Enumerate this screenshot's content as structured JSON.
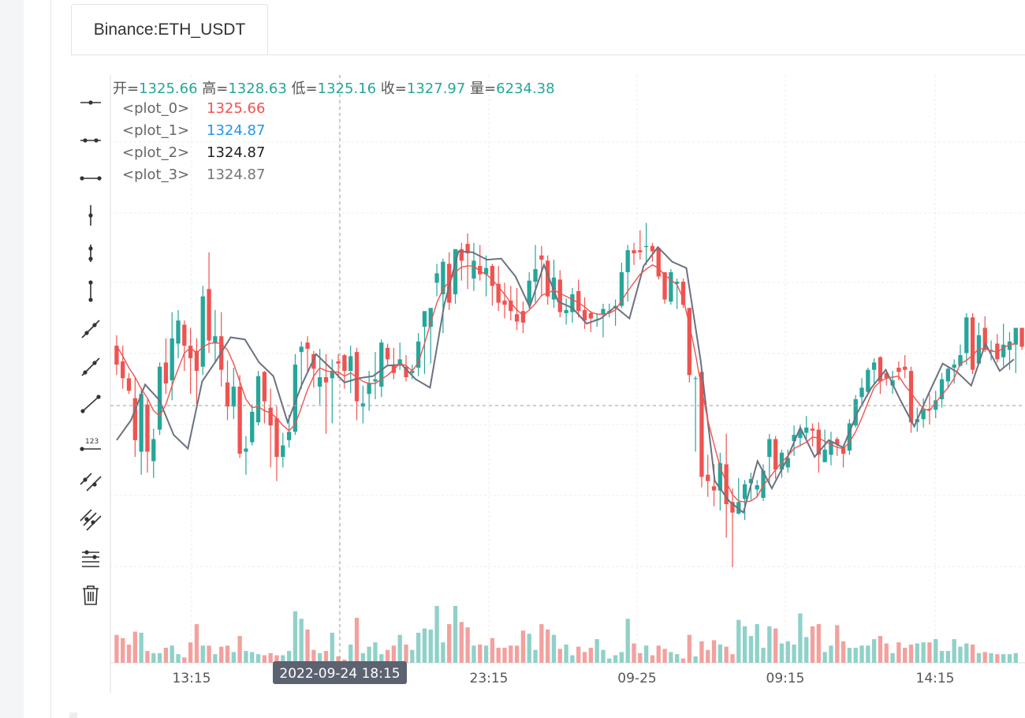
{
  "tab": {
    "label": "Binance:ETH_USDT"
  },
  "ohlcv_legend": {
    "open_label": "开=",
    "open": "1325.66",
    "high_label": "高=",
    "high": "1328.63",
    "low_label": "低=",
    "low": "1325.16",
    "close_label": "收=",
    "close": "1327.97",
    "vol_label": "量=",
    "vol": "6234.38"
  },
  "plots": [
    {
      "name": "<plot_0>",
      "value": "1325.66",
      "color": "#ef5350"
    },
    {
      "name": "<plot_1>",
      "value": "1324.87",
      "color": "#2196f3"
    },
    {
      "name": "<plot_2>",
      "value": "1324.87",
      "color": "#222222"
    },
    {
      "name": "<plot_3>",
      "value": "1324.87",
      "color": "#777777"
    }
  ],
  "toolbar": {
    "tools": [
      "horizontal-ray-icon",
      "horizontal-segment-icon",
      "horizontal-line-icon",
      "vertical-ray-icon",
      "vertical-segment-icon",
      "vertical-line-icon",
      "trend-line-icon",
      "trend-ray-icon",
      "trend-segment-icon",
      "price-label-icon",
      "parallel-channel-icon",
      "fibonacci-channel-icon",
      "price-range-icon",
      "delete-icon"
    ]
  },
  "colors": {
    "up": "#26a69a",
    "down": "#ef5350",
    "ma": "#ef5350",
    "line": "#6b7280",
    "grid": "#eeeeee"
  },
  "chart_data": {
    "type": "candlestick",
    "x_ticks": [
      "13:15",
      "23:15",
      "09-25",
      "09:15",
      "14:15"
    ],
    "crosshair_time": "2022-09-24 18:15",
    "ylim": [
      1300,
      1350
    ],
    "candles": [
      [
        1324.2,
        1325.2,
        1321.4,
        1322.4
      ],
      [
        1322.7,
        1324.2,
        1320.1,
        1321.1
      ],
      [
        1321.1,
        1321.6,
        1319.6,
        1319.9
      ],
      [
        1319.2,
        1321.2,
        1313.6,
        1315.2
      ],
      [
        1314.1,
        1320.2,
        1311.9,
        1319.6
      ],
      [
        1318.6,
        1319.1,
        1312.1,
        1314.1
      ],
      [
        1313.2,
        1316.3,
        1311.6,
        1315.3
      ],
      [
        1316.2,
        1322.6,
        1315.7,
        1322.2
      ],
      [
        1322.6,
        1324.9,
        1319.6,
        1320.6
      ],
      [
        1320.9,
        1327.4,
        1319.0,
        1324.9
      ],
      [
        1324.4,
        1327.6,
        1323.0,
        1326.6
      ],
      [
        1326.2,
        1326.6,
        1321.8,
        1324.2
      ],
      [
        1324.2,
        1325.9,
        1319.6,
        1323.0
      ],
      [
        1323.7,
        1324.9,
        1318.6,
        1321.8
      ],
      [
        1322.2,
        1329.9,
        1321.4,
        1328.9
      ],
      [
        1329.6,
        1333.1,
        1323.5,
        1324.7
      ],
      [
        1324.4,
        1327.6,
        1322.5,
        1325.1
      ],
      [
        1325.1,
        1327.4,
        1320.3,
        1321.9
      ],
      [
        1320.7,
        1322.8,
        1317.1,
        1318.4
      ],
      [
        1318.4,
        1322.1,
        1317.2,
        1320.3
      ],
      [
        1320.3,
        1321.4,
        1313.5,
        1313.9
      ],
      [
        1314.1,
        1315.6,
        1311.9,
        1314.4
      ],
      [
        1315.0,
        1318.6,
        1314.7,
        1317.9
      ],
      [
        1316.9,
        1321.8,
        1316.6,
        1321.3
      ],
      [
        1321.7,
        1321.8,
        1316.8,
        1318.9
      ],
      [
        1318.3,
        1320.1,
        1312.6,
        1316.6
      ],
      [
        1317.3,
        1318.4,
        1311.3,
        1313.6
      ],
      [
        1313.6,
        1315.9,
        1312.6,
        1314.7
      ],
      [
        1315.2,
        1317.6,
        1314.5,
        1316.0
      ],
      [
        1316.0,
        1323.4,
        1315.7,
        1322.4
      ],
      [
        1323.6,
        1324.6,
        1320.1,
        1324.1
      ],
      [
        1324.5,
        1325.1,
        1321.6,
        1323.9
      ],
      [
        1323.4,
        1323.7,
        1320.2,
        1322.0
      ],
      [
        1320.3,
        1323.9,
        1318.6,
        1321.2
      ],
      [
        1321.2,
        1323.4,
        1315.8,
        1320.7
      ],
      [
        1321.1,
        1322.9,
        1316.8,
        1321.8
      ],
      [
        1322.7,
        1323.4,
        1321.1,
        1322.5
      ],
      [
        1323.3,
        1323.4,
        1320.1,
        1321.8
      ],
      [
        1321.8,
        1324.2,
        1319.7,
        1323.2
      ],
      [
        1323.6,
        1324.0,
        1317.1,
        1318.9
      ],
      [
        1318.4,
        1320.4,
        1316.8,
        1318.7
      ],
      [
        1319.6,
        1321.8,
        1318.0,
        1320.6
      ],
      [
        1320.8,
        1323.6,
        1319.1,
        1321.0
      ],
      [
        1320.3,
        1324.8,
        1319.3,
        1324.5
      ],
      [
        1324.0,
        1324.4,
        1322.3,
        1322.9
      ],
      [
        1322.3,
        1324.0,
        1321.0,
        1321.6
      ],
      [
        1322.4,
        1324.5,
        1321.9,
        1322.9
      ],
      [
        1322.2,
        1323.3,
        1320.8,
        1321.2
      ],
      [
        1321.6,
        1322.4,
        1321.0,
        1321.8
      ],
      [
        1322.1,
        1325.4,
        1321.3,
        1324.6
      ],
      [
        1326.0,
        1327.3,
        1321.5,
        1327.5
      ],
      [
        1326.0,
        1327.6,
        1322.5,
        1327.8
      ],
      [
        1330.2,
        1332.0,
        1328.9,
        1331.1
      ],
      [
        1329.1,
        1332.5,
        1325.4,
        1332.2
      ],
      [
        1332.0,
        1333.1,
        1327.6,
        1328.3
      ],
      [
        1329.1,
        1333.4,
        1328.2,
        1333.4
      ],
      [
        1333.4,
        1334.0,
        1330.4,
        1332.3
      ],
      [
        1333.9,
        1334.9,
        1329.6,
        1333.0
      ],
      [
        1330.6,
        1334.0,
        1329.4,
        1332.3
      ],
      [
        1331.8,
        1333.8,
        1330.4,
        1331.0
      ],
      [
        1331.0,
        1332.8,
        1328.9,
        1331.6
      ],
      [
        1331.8,
        1332.0,
        1328.0,
        1329.9
      ],
      [
        1330.1,
        1331.8,
        1327.5,
        1328.3
      ],
      [
        1328.5,
        1330.2,
        1326.8,
        1328.1
      ],
      [
        1328.5,
        1329.9,
        1326.6,
        1327.5
      ],
      [
        1327.2,
        1329.7,
        1325.7,
        1326.5
      ],
      [
        1327.5,
        1328.4,
        1325.4,
        1326.4
      ],
      [
        1328.2,
        1331.2,
        1327.7,
        1330.4
      ],
      [
        1330.3,
        1333.8,
        1328.3,
        1331.5
      ],
      [
        1332.8,
        1333.7,
        1328.9,
        1332.4
      ],
      [
        1332.3,
        1332.8,
        1328.1,
        1328.9
      ],
      [
        1328.6,
        1332.4,
        1327.8,
        1330.7
      ],
      [
        1330.5,
        1331.4,
        1326.9,
        1327.4
      ],
      [
        1327.3,
        1328.7,
        1326.2,
        1327.6
      ],
      [
        1327.4,
        1329.7,
        1326.4,
        1329.1
      ],
      [
        1329.4,
        1330.5,
        1326.9,
        1327.5
      ],
      [
        1327.6,
        1328.8,
        1325.8,
        1326.6
      ],
      [
        1327.3,
        1327.5,
        1325.5,
        1326.8
      ],
      [
        1326.6,
        1327.3,
        1326.0,
        1326.7
      ],
      [
        1327.2,
        1328.2,
        1325.0,
        1327.7
      ],
      [
        1327.5,
        1328.2,
        1326.9,
        1327.5
      ],
      [
        1327.9,
        1328.6,
        1326.1,
        1328.0
      ],
      [
        1328.0,
        1332.1,
        1327.8,
        1331.2
      ],
      [
        1331.2,
        1333.8,
        1328.4,
        1333.3
      ],
      [
        1333.3,
        1334.0,
        1331.9,
        1333.0
      ],
      [
        1333.3,
        1335.2,
        1332.4,
        1333.1
      ],
      [
        1333.6,
        1335.9,
        1331.9,
        1333.7
      ],
      [
        1333.7,
        1334.0,
        1332.2,
        1333.2
      ],
      [
        1333.5,
        1333.6,
        1330.5,
        1330.8
      ],
      [
        1331.2,
        1331.2,
        1328.2,
        1328.6
      ],
      [
        1328.4,
        1331.5,
        1328.1,
        1331.2
      ],
      [
        1330.1,
        1330.6,
        1327.7,
        1330.3
      ],
      [
        1330.3,
        1330.6,
        1327.8,
        1328.1
      ],
      [
        1327.8,
        1327.8,
        1320.7,
        1321.4
      ],
      [
        1321.1,
        1321.3,
        1314.1,
        1321.1
      ],
      [
        1321.7,
        1321.8,
        1310.7,
        1311.7
      ],
      [
        1311.9,
        1313.8,
        1309.8,
        1311.3
      ],
      [
        1310.8,
        1312.9,
        1308.9,
        1310.4
      ],
      [
        1310.4,
        1314.0,
        1308.5,
        1313.0
      ],
      [
        1312.9,
        1315.8,
        1305.9,
        1309.1
      ],
      [
        1309.3,
        1310.6,
        1303.1,
        1308.3
      ],
      [
        1308.2,
        1311.6,
        1308.1,
        1309.3
      ],
      [
        1309.6,
        1311.4,
        1307.6,
        1311.0
      ],
      [
        1311.1,
        1312.1,
        1309.5,
        1311.5
      ],
      [
        1310.5,
        1311.4,
        1309.8,
        1310.9
      ],
      [
        1309.7,
        1312.9,
        1309.4,
        1312.3
      ],
      [
        1313.6,
        1315.8,
        1310.9,
        1315.3
      ],
      [
        1315.3,
        1315.6,
        1311.5,
        1312.4
      ],
      [
        1312.4,
        1314.3,
        1311.6,
        1314.0
      ],
      [
        1312.6,
        1314.3,
        1312.1,
        1313.5
      ],
      [
        1315.1,
        1316.6,
        1313.7,
        1315.7
      ],
      [
        1315.4,
        1316.7,
        1314.6,
        1316.1
      ],
      [
        1315.9,
        1317.5,
        1315.3,
        1316.4
      ],
      [
        1316.3,
        1316.8,
        1314.6,
        1316.1
      ],
      [
        1316.2,
        1316.9,
        1312.1,
        1313.8
      ],
      [
        1313.1,
        1316.2,
        1313.1,
        1314.3
      ],
      [
        1313.8,
        1316.0,
        1312.8,
        1315.1
      ],
      [
        1315.3,
        1315.5,
        1313.7,
        1314.8
      ],
      [
        1314.5,
        1314.7,
        1312.6,
        1313.9
      ],
      [
        1314.2,
        1317.2,
        1313.8,
        1316.8
      ],
      [
        1316.6,
        1319.5,
        1316.4,
        1319.1
      ],
      [
        1319.3,
        1321.1,
        1318.4,
        1320.2
      ],
      [
        1319.8,
        1322.1,
        1319.6,
        1321.9
      ],
      [
        1321.9,
        1323.0,
        1320.6,
        1322.6
      ],
      [
        1323.1,
        1323.2,
        1319.6,
        1320.8
      ],
      [
        1321.6,
        1321.9,
        1320.4,
        1321.1
      ],
      [
        1320.4,
        1321.8,
        1319.6,
        1320.9
      ],
      [
        1322.1,
        1322.7,
        1320.9,
        1321.7
      ],
      [
        1322.2,
        1323.3,
        1321.1,
        1321.9
      ],
      [
        1321.8,
        1322.2,
        1315.9,
        1316.9
      ],
      [
        1316.9,
        1318.3,
        1316.0,
        1317.2
      ],
      [
        1317.2,
        1319.2,
        1316.4,
        1318.1
      ],
      [
        1318.2,
        1319.6,
        1316.7,
        1318.1
      ],
      [
        1318.1,
        1319.9,
        1317.3,
        1319.0
      ],
      [
        1319.1,
        1321.6,
        1318.3,
        1321.0
      ],
      [
        1320.8,
        1322.2,
        1320.2,
        1322.0
      ],
      [
        1322.1,
        1322.9,
        1320.6,
        1322.4
      ],
      [
        1322.3,
        1324.3,
        1322.2,
        1323.3
      ],
      [
        1323.5,
        1327.3,
        1322.4,
        1326.9
      ],
      [
        1326.9,
        1327.3,
        1321.5,
        1321.9
      ],
      [
        1322.5,
        1326.4,
        1322.4,
        1325.2
      ],
      [
        1325.9,
        1327.0,
        1323.6,
        1323.8
      ],
      [
        1323.8,
        1324.7,
        1322.8,
        1323.8
      ],
      [
        1324.4,
        1325.3,
        1322.6,
        1322.9
      ],
      [
        1323.1,
        1326.3,
        1322.2,
        1324.3
      ],
      [
        1323.8,
        1325.5,
        1321.9,
        1324.6
      ],
      [
        1324.3,
        1325.7,
        1321.6,
        1325.9
      ],
      [
        1325.9,
        1325.9,
        1323.8,
        1324.1
      ]
    ],
    "ma": [
      1324.2,
      1323.2,
      1322.1,
      1321.2,
      1320.1,
      1319.2,
      1318.0,
      1317.5,
      1318.6,
      1320.4,
      1322.0,
      1323.5,
      1324.0,
      1323.5,
      1324.1,
      1324.4,
      1324.5,
      1324.4,
      1323.8,
      1322.5,
      1320.8,
      1319.1,
      1318.3,
      1318.4,
      1318.0,
      1317.8,
      1317.3,
      1316.6,
      1316.1,
      1316.7,
      1318.3,
      1320.0,
      1321.3,
      1322.1,
      1321.8,
      1321.7,
      1321.7,
      1321.3,
      1321.6,
      1321.2,
      1320.8,
      1320.6,
      1320.6,
      1321.0,
      1321.4,
      1321.9,
      1322.5,
      1322.3,
      1321.8,
      1322.6,
      1324.4,
      1326.4,
      1328.3,
      1329.6,
      1330.3,
      1331.2,
      1331.7,
      1331.8,
      1331.8,
      1331.3,
      1331.0,
      1330.5,
      1329.8,
      1329.1,
      1328.3,
      1327.6,
      1327.1,
      1327.6,
      1328.2,
      1329.0,
      1329.2,
      1329.5,
      1329.2,
      1328.9,
      1328.6,
      1328.3,
      1327.9,
      1327.4,
      1327.2,
      1327.2,
      1327.3,
      1327.6,
      1328.5,
      1329.4,
      1330.2,
      1331.0,
      1331.5,
      1331.9,
      1331.6,
      1330.9,
      1330.5,
      1330.0,
      1328.7,
      1326.2,
      1323.4,
      1320.1,
      1317.1,
      1314.8,
      1312.6,
      1311.2,
      1310.0,
      1309.4,
      1309.3,
      1309.4,
      1309.8,
      1310.9,
      1311.6,
      1312.4,
      1313.1,
      1313.7,
      1314.4,
      1314.7,
      1315.0,
      1315.5,
      1315.4,
      1315.1,
      1314.8,
      1314.5,
      1314.4,
      1315.0,
      1316.0,
      1317.3,
      1318.8,
      1320.2,
      1320.8,
      1321.1,
      1321.2,
      1321.3,
      1320.4,
      1319.7,
      1318.9,
      1318.2,
      1318.0,
      1318.8,
      1319.5,
      1320.2,
      1321.1,
      1322.5,
      1322.8,
      1323.3,
      1323.9,
      1323.9,
      1323.7,
      1323.6,
      1324.0,
      1324.3,
      1324.4
    ],
    "line": [
      1315.2,
      1317.1,
      1320.5,
      1319.0,
      1315.7,
      1314.4,
      1320.8,
      1322.8,
      1325.0,
      1324.8,
      1322.6,
      1321.3,
      1316.9,
      1320.5,
      1323.4,
      1322.1,
      1320.7,
      1321.1,
      1321.3,
      1322.3,
      1322.4,
      1321.0,
      1320.2,
      1328.1,
      1333.2,
      1333.1,
      1332.4,
      1332.5,
      1330.8,
      1327.9,
      1331.9,
      1328.4,
      1327.8,
      1326.3,
      1326.8,
      1327.9,
      1326.8,
      1331.8,
      1333.6,
      1332.2,
      1331.6,
      1322.8,
      1311.3,
      1309.4,
      1308.3,
      1313.2,
      1310.6,
      1313.2,
      1316.4,
      1313.6,
      1315.2,
      1314.5,
      1317.8,
      1320.2,
      1321.9,
      1319.1,
      1316.5,
      1319.6,
      1322.5,
      1321.7,
      1320.4,
      1324.4,
      1321.8,
      1322.9
    ],
    "volume": [
      2.6,
      2.3,
      1.7,
      2.9,
      2.8,
      1.1,
      0.9,
      0.9,
      1.4,
      1.6,
      0.8,
      0.5,
      1.9,
      3.6,
      1.6,
      1.6,
      0.8,
      1.5,
      1.6,
      1.0,
      2.5,
      1.1,
      1.0,
      0.8,
      0.7,
      0.9,
      0.7,
      0.7,
      1.1,
      4.8,
      4.1,
      3.1,
      1.2,
      0.9,
      1.1,
      2.8,
      0.6,
      0.3,
      1.7,
      4.2,
      0.9,
      1.5,
      1.9,
      0.8,
      1.2,
      1.6,
      2.6,
      1.7,
      1.2,
      2.8,
      3.2,
      3.1,
      5.3,
      1.9,
      3.6,
      5.3,
      3.8,
      3.3,
      1.6,
      1.7,
      1.6,
      2.3,
      1.4,
      1.4,
      1.6,
      1.6,
      3.0,
      2.7,
      1.2,
      3.6,
      3.1,
      2.6,
      1.3,
      1.7,
      0.7,
      1.5,
      1.0,
      1.4,
      2.2,
      1.2,
      0.4,
      0.7,
      1.0,
      4.1,
      1.8,
      0.9,
      1.6,
      0.7,
      1.6,
      1.3,
      1.0,
      0.8,
      0.4,
      2.6,
      0.6,
      2.0,
      1.2,
      2.1,
      1.7,
      1.5,
      0.8,
      4.0,
      3.4,
      2.5,
      3.6,
      1.4,
      3.4,
      3.2,
      1.8,
      2.0,
      1.7,
      4.6,
      2.4,
      3.4,
      3.6,
      1.0,
      1.6,
      3.5,
      2.0,
      1.4,
      1.4,
      1.6,
      1.6,
      2.2,
      2.5,
      1.8,
      0.9,
      1.9,
      1.4,
      1.7,
      1.8,
      1.9,
      1.9,
      2.2,
      1.1,
      1.1,
      2.2,
      1.5,
      1.8,
      1.7,
      0.9,
      1.0,
      0.9,
      0.8,
      0.8,
      0.8,
      0.9
    ]
  }
}
